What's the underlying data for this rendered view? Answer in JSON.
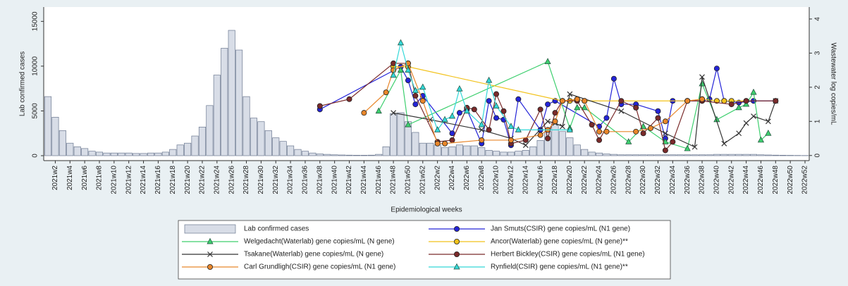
{
  "chart_data": {
    "type": "bar",
    "x_label": "Epidemiological weeks",
    "y_label": "Lab confirmed cases",
    "y2_label": "Wastewater log copies/mL",
    "categories": [
      null,
      "2021w2",
      null,
      "2021w4",
      null,
      "2021w6",
      null,
      "2021w8",
      null,
      "2021w10",
      null,
      "2021w12",
      null,
      "2021w14",
      null,
      "2021w16",
      null,
      "2021w18",
      null,
      "2021w20",
      null,
      "2021w22",
      null,
      "2021w24",
      null,
      "2021w26",
      null,
      "2021w28",
      null,
      "2021w30",
      null,
      "2021w32",
      null,
      "2021w34",
      null,
      "2021w36",
      null,
      "2021w38",
      null,
      "2021w40",
      null,
      "2021w42",
      null,
      "2021w44",
      null,
      "2021w46",
      null,
      "2021w48",
      null,
      "2021w50",
      null,
      "2021w52",
      null,
      "2022w2",
      null,
      "2022w4",
      null,
      "2022w6",
      null,
      "2022w8",
      null,
      "2022w10",
      null,
      "2022w12",
      null,
      "2022w14",
      null,
      "2022w16",
      null,
      "2022w18",
      null,
      "2022w20",
      null,
      "2022w22",
      null,
      "2022w24",
      null,
      "2022w26",
      null,
      "2022w28",
      null,
      "2022w30",
      null,
      "2022w32",
      null,
      "2022w34",
      null,
      "2022w36",
      null,
      "2022w38",
      null,
      "2022w40",
      null,
      "2022w42",
      null,
      "2022w44",
      null,
      "2022w46",
      null,
      "2022w48",
      null,
      "2022w50",
      null,
      "2022w52"
    ],
    "ylim": [
      -550,
      16600
    ],
    "yticks": [
      0,
      5000,
      10000,
      15000
    ],
    "y2lim": [
      -0.15,
      4.35
    ],
    "y2ticks": [
      0,
      1,
      2,
      3,
      4
    ],
    "series": [
      {
        "name": "Lab confirmed cases",
        "type": "bar",
        "color": "#d8dde7",
        "edge": "#6b7890",
        "values": [
          6600,
          4300,
          2800,
          1400,
          1000,
          800,
          500,
          400,
          300,
          300,
          300,
          300,
          250,
          250,
          300,
          300,
          400,
          700,
          1200,
          1400,
          2200,
          3200,
          5600,
          9000,
          12000,
          14000,
          11800,
          6600,
          4200,
          3800,
          2800,
          2000,
          1600,
          1100,
          700,
          500,
          300,
          200,
          150,
          100,
          80,
          60,
          50,
          50,
          60,
          150,
          1000,
          4700,
          4800,
          3800,
          2600,
          1400,
          1400,
          1200,
          900,
          1000,
          1200,
          1100,
          1100,
          900,
          600,
          500,
          400,
          400,
          500,
          600,
          1000,
          1700,
          2700,
          3500,
          2700,
          2000,
          1200,
          700,
          400,
          300,
          200,
          150,
          100,
          100,
          100,
          100,
          100,
          100,
          100,
          100,
          100,
          100,
          100,
          100,
          100,
          150,
          150,
          150,
          150,
          150,
          150,
          100,
          80,
          60,
          50,
          40,
          30,
          20
        ]
      },
      {
        "name": "Jan Smuts(CSIR) gene copies/mL (N1 gene)",
        "type": "line",
        "axis": "y2",
        "color": "#2424d8",
        "marker": "circle",
        "x": [
          "2021w38",
          "2021w49",
          "2021w50",
          "2021w51",
          "2021w52",
          "2022w4",
          "2022w5",
          "2022w6",
          "2022w8",
          "2022w9",
          "2022w10",
          "2022w11",
          "2022w12",
          "2022w13",
          "2022w16",
          "2022w17",
          "2022w18",
          "2022w24",
          "2022w25",
          "2022w26",
          "2022w27",
          "2022w29",
          "2022w32",
          "2022w33",
          "2022w34",
          "2022w36",
          "2022w38",
          "2022w39",
          "2022w40",
          "2022w41",
          "2022w43",
          "2022w45",
          "2022w48"
        ],
        "values": [
          1.35,
          2.6,
          2.2,
          1.5,
          1.75,
          0.65,
          1.25,
          1.35,
          0.35,
          1.6,
          1.1,
          1.05,
          0.3,
          1.65,
          0.75,
          1.5,
          1.6,
          0.85,
          1.1,
          2.25,
          1.5,
          1.5,
          1.3,
          0.5,
          1.6,
          1.6,
          1.6,
          1.65,
          2.55,
          1.6,
          1.55,
          1.6,
          1.6
        ]
      },
      {
        "name": "Welgedacht(Waterlab) gene copies/mL (N gene)",
        "type": "line",
        "axis": "y2",
        "color": "#3dcf6e",
        "marker": "triangle",
        "x": [
          "2021w46",
          "2021w49",
          "2021w50",
          "2022w17",
          "2022w20",
          "2022w21",
          "2022w22",
          "2022w28",
          "2022w30",
          "2022w33",
          "2022w36",
          "2022w38",
          "2022w40",
          "2022w43",
          "2022w44",
          "2022w45",
          "2022w46",
          "2022w47"
        ],
        "values": [
          1.3,
          2.5,
          0.9,
          2.75,
          0.8,
          1.4,
          1.4,
          0.4,
          0.85,
          0.4,
          0.2,
          2.1,
          1.05,
          1.4,
          1.5,
          1.85,
          0.45,
          0.65
        ]
      },
      {
        "name": "Ancor(Waterlab) gene copies/mL (N gene)**",
        "type": "line",
        "axis": "y2",
        "color": "#f2c21b",
        "marker": "circle",
        "x": [
          "2021w48",
          "2021w50",
          "2022w19",
          "2022w20",
          "2022w21",
          "2022w22",
          "2022w36",
          "2022w38",
          "2022w40",
          "2022w41",
          "2022w42",
          "2022w44"
        ],
        "values": [
          2.6,
          2.6,
          1.6,
          1.6,
          1.65,
          1.6,
          1.6,
          1.65,
          1.6,
          1.6,
          1.6,
          1.6
        ]
      },
      {
        "name": "Tsakane(Waterlab) gene copies/mL (N gene)",
        "type": "line",
        "axis": "y2",
        "color": "#333333",
        "marker": "x",
        "x": [
          "2021w48",
          "2022w1",
          "2022w8",
          "2022w12",
          "2022w14",
          "2022w17",
          "2022w18",
          "2022w19",
          "2022w20",
          "2022w27",
          "2022w33",
          "2022w37",
          "2022w38",
          "2022w41",
          "2022w43",
          "2022w44",
          "2022w45",
          "2022w47",
          "2022w48"
        ],
        "values": [
          1.25,
          1.05,
          0.75,
          0.5,
          0.3,
          1.0,
          0.95,
          0.85,
          1.8,
          1.3,
          0.65,
          0.25,
          2.3,
          0.35,
          0.65,
          0.95,
          1.15,
          1.0,
          1.6
        ]
      },
      {
        "name": "Herbert Bickley(CSIR) gene copies/mL (N1 gene)",
        "type": "line",
        "axis": "y2",
        "color": "#7a2a2a",
        "marker": "circle",
        "x": [
          "2021w38",
          "2021w42",
          "2021w48",
          "2021w50",
          "2021w51",
          "2022w2",
          "2022w4",
          "2022w6",
          "2022w7",
          "2022w9",
          "2022w10",
          "2022w11",
          "2022w12",
          "2022w14",
          "2022w16",
          "2022w17",
          "2022w18",
          "2022w19",
          "2022w21",
          "2022w23",
          "2022w24",
          "2022w27",
          "2022w29",
          "2022w30",
          "2022w32",
          "2022w33",
          "2022w34",
          "2022w36",
          "2022w38",
          "2022w42",
          "2022w44",
          "2022w48"
        ],
        "values": [
          1.45,
          1.65,
          2.7,
          2.7,
          1.75,
          0.4,
          0.45,
          1.4,
          1.35,
          0.75,
          1.8,
          1.3,
          0.35,
          0.45,
          1.35,
          0.5,
          1.25,
          1.6,
          1.6,
          0.9,
          0.45,
          1.6,
          1.4,
          0.65,
          1.1,
          0.15,
          0.4,
          1.6,
          1.6,
          1.5,
          1.6,
          1.6
        ]
      },
      {
        "name": "Carl Grundligh(CSIR) gene copies/mL (N1 gene)",
        "type": "line",
        "axis": "y2",
        "color": "#e8862a",
        "marker": "circle",
        "x": [
          "2021w44",
          "2021w47",
          "2021w48",
          "2021w50",
          "2021w52",
          "2022w2",
          "2022w3",
          "2022w8",
          "2022w12",
          "2022w16",
          "2022w17",
          "2022w18",
          "2022w19",
          "2022w21",
          "2022w22",
          "2022w24",
          "2022w25",
          "2022w29",
          "2022w31",
          "2022w33",
          "2022w36",
          "2022w38"
        ],
        "values": [
          1.25,
          1.85,
          2.5,
          2.7,
          1.6,
          0.35,
          0.35,
          0.45,
          0.45,
          0.6,
          0.75,
          1.0,
          1.6,
          1.65,
          1.6,
          0.7,
          0.7,
          0.7,
          0.8,
          1.0,
          1.6,
          1.65
        ]
      },
      {
        "name": "Rynfield(CSIR) gene copies/mL (N1 gene)**",
        "type": "line",
        "axis": "y2",
        "color": "#33d8d8",
        "marker": "triangle",
        "x": [
          "2021w48",
          "2021w49",
          "2021w50",
          "2021w51",
          "2021w52",
          "2022w2",
          "2022w3",
          "2022w4",
          "2022w5",
          "2022w6",
          "2022w8",
          "2022w9",
          "2022w10",
          "2022w12",
          "2022w13",
          "2022w20"
        ],
        "values": [
          2.35,
          3.3,
          2.5,
          1.9,
          2.0,
          0.75,
          1.05,
          1.15,
          1.95,
          1.3,
          0.9,
          2.2,
          1.45,
          0.85,
          0.75,
          0.75
        ]
      }
    ]
  }
}
